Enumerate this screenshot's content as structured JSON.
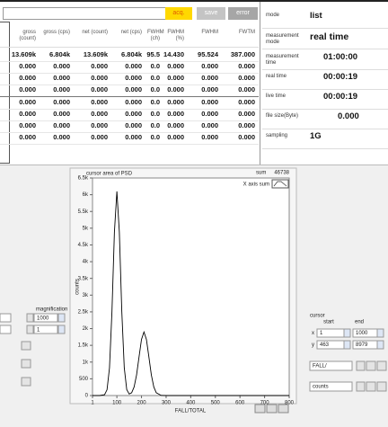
{
  "toolbar": {
    "buttons": [
      "acq.",
      "save",
      "error"
    ]
  },
  "table": {
    "columns": [
      "gross (count)",
      "gross (cps)",
      "net (count)",
      "net (cps)",
      "FWHM (ch)",
      "FWHM (%)",
      "FWHM",
      "FWTM"
    ],
    "rows": [
      [
        "13.609k",
        "6.804k",
        "13.609k",
        "6.804k",
        "95.5",
        "14.430",
        "95.524",
        "387.000"
      ],
      [
        "0.000",
        "0.000",
        "0.000",
        "0.000",
        "0.0",
        "0.000",
        "0.000",
        "0.000"
      ],
      [
        "0.000",
        "0.000",
        "0.000",
        "0.000",
        "0.0",
        "0.000",
        "0.000",
        "0.000"
      ],
      [
        "0.000",
        "0.000",
        "0.000",
        "0.000",
        "0.0",
        "0.000",
        "0.000",
        "0.000"
      ],
      [
        "0.000",
        "0.000",
        "0.000",
        "0.000",
        "0.0",
        "0.000",
        "0.000",
        "0.000"
      ],
      [
        "0.000",
        "0.000",
        "0.000",
        "0.000",
        "0.0",
        "0.000",
        "0.000",
        "0.000"
      ],
      [
        "0.000",
        "0.000",
        "0.000",
        "0.000",
        "0.0",
        "0.000",
        "0.000",
        "0.000"
      ],
      [
        "0.000",
        "0.000",
        "0.000",
        "0.000",
        "0.0",
        "0.000",
        "0.000",
        "0.000"
      ]
    ]
  },
  "status": [
    {
      "label": "mode",
      "value": "list"
    },
    {
      "label": "measurement mode",
      "value": "real time"
    },
    {
      "label": "measurement time",
      "value": "01:00:00"
    },
    {
      "label": "real time",
      "value": "00:00:19"
    },
    {
      "label": "live time",
      "value": "00:00:19"
    },
    {
      "label": "file size(Byte)",
      "value": "0.000"
    },
    {
      "label": "sampling",
      "value": "1G"
    }
  ],
  "chart_data": {
    "type": "line",
    "title": "cursor area of PSD",
    "sum_label": "sum",
    "sum": 46738,
    "x_label": "FALL/TOTAL",
    "y_label": "counts",
    "x": [
      1,
      30,
      50,
      60,
      70,
      80,
      90,
      100,
      110,
      120,
      130,
      140,
      150,
      160,
      170,
      180,
      190,
      200,
      210,
      220,
      230,
      240,
      250,
      260,
      280,
      300,
      400,
      500,
      600,
      700,
      800
    ],
    "series": [
      {
        "name": "X axis sum",
        "color": "#000000",
        "values": [
          0,
          0,
          24,
          174,
          826,
          2508,
          4883,
          6100,
          4883,
          2508,
          830,
          180,
          45,
          84,
          257,
          617,
          1152,
          1677,
          1900,
          1677,
          1152,
          617,
          257,
          84,
          4,
          0,
          0,
          0,
          0,
          0,
          0
        ]
      }
    ],
    "xlim": [
      1,
      800
    ],
    "xticks": [
      1,
      100,
      200,
      300,
      400,
      500,
      600,
      700,
      800
    ],
    "ylim": [
      0,
      6500
    ],
    "yticks": [
      0,
      500,
      {
        "value": 1000,
        "label": "1k"
      },
      {
        "value": 1500,
        "label": "1.5k"
      },
      {
        "value": 2000,
        "label": "2k"
      },
      {
        "value": 2500,
        "label": "2.5k"
      },
      {
        "value": 3000,
        "label": "3k"
      },
      {
        "value": 3500,
        "label": "3.5k"
      },
      {
        "value": 4000,
        "label": "4k"
      },
      {
        "value": 4500,
        "label": "4.5k"
      },
      {
        "value": 5000,
        "label": "5k"
      },
      {
        "value": 5500,
        "label": "5.5k"
      },
      {
        "value": 6000,
        "label": "6k"
      },
      {
        "value": 6500,
        "label": "6.5k"
      }
    ]
  },
  "magnification": {
    "label": "magnification",
    "values": [
      1000,
      1
    ]
  },
  "cursor": {
    "label": "cursor",
    "start_label": "start",
    "end_label": "end",
    "rows": [
      {
        "axis": "x",
        "start": 1,
        "end": 1000
      },
      {
        "axis": "y",
        "start": 463,
        "end": 8979
      }
    ]
  },
  "selectors": [
    "FALL/",
    "counts"
  ]
}
